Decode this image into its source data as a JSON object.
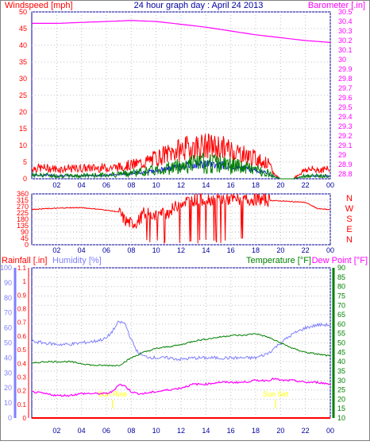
{
  "header": {
    "title": "24 hour graph day : April 24 2013",
    "left_label": "Windspeed [mph]",
    "right_label": "Barometer [.in]"
  },
  "colors": {
    "frame": "#0000a0",
    "grid": "#c0c0c0",
    "wind_avg": "#008000",
    "wind_gust": "#ff0000",
    "wind_lull": "#0000ff",
    "barometer": "#ff00ff",
    "direction": "#ff0000",
    "humidity": "#7f7fff",
    "temperature": "#008000",
    "dewpoint": "#ff00ff",
    "rainfall": "#ff0000",
    "sun": "#ffff00"
  },
  "chart_data": [
    {
      "type": "line",
      "name": "wind",
      "x_ticks": [
        "02",
        "04",
        "06",
        "08",
        "10",
        "12",
        "14",
        "16",
        "18",
        "20",
        "22",
        "00"
      ],
      "ylim": [
        0,
        50
      ],
      "y_ticks": [
        "0",
        "5",
        "10",
        "15",
        "20",
        "25",
        "30",
        "35",
        "40",
        "45",
        "50"
      ],
      "y2lim": [
        28.75,
        30.5
      ],
      "y2_ticks": [
        "28.8",
        "28.9",
        "29.0",
        "29.1",
        "29.2",
        "29.3",
        "29.4",
        "29.5",
        "29.6",
        "29.7",
        "29.8",
        "29.9",
        "30.0",
        "30.1",
        "30.2",
        "30.3",
        "30.4",
        "30.5"
      ],
      "y2_tick_labels": [
        "28.8",
        "28.9",
        "29",
        "29.1",
        "29.2",
        "29.3",
        "29.4",
        "29.5",
        "29.6",
        "29.7",
        "29.8",
        "29.9",
        "30",
        "30.1",
        "30.2",
        "30.3",
        "30.4",
        "30.5"
      ],
      "series": [
        {
          "role": "barometer",
          "hours": [
            0,
            2,
            4,
            6,
            8,
            10,
            12,
            14,
            16,
            18,
            20,
            22,
            24
          ],
          "values": [
            30.38,
            30.38,
            30.39,
            30.4,
            30.41,
            30.4,
            30.37,
            30.34,
            30.3,
            30.26,
            30.23,
            30.2,
            30.18
          ]
        },
        {
          "role": "gust",
          "hours": [
            0,
            1,
            2,
            3,
            4,
            5,
            6,
            7,
            8,
            9,
            10,
            11,
            12,
            13,
            14,
            15,
            16,
            17,
            18,
            19,
            19.5,
            20,
            21,
            22,
            23,
            24
          ],
          "values": [
            3.5,
            3.5,
            3.2,
            3.2,
            3.4,
            3.5,
            3.6,
            3.8,
            4.5,
            5.2,
            6.8,
            8.2,
            9.5,
            10.5,
            10.6,
            10.3,
            9.4,
            8.0,
            6.6,
            4.8,
            1.5,
            0,
            0,
            3.0,
            3.0,
            3.0
          ]
        },
        {
          "role": "average",
          "hours": [
            0,
            1,
            2,
            3,
            4,
            5,
            6,
            7,
            8,
            9,
            10,
            11,
            12,
            13,
            14,
            15,
            16,
            17,
            18,
            19,
            19.5,
            20,
            21,
            22,
            23,
            24
          ],
          "values": [
            1.2,
            1.3,
            1.0,
            1.0,
            1.1,
            1.2,
            1.3,
            1.6,
            2.0,
            2.4,
            2.9,
            3.6,
            4.4,
            5.0,
            5.2,
            5.0,
            4.4,
            3.8,
            3.0,
            2.0,
            0.8,
            0,
            0,
            1.0,
            1.0,
            1.0
          ]
        }
      ]
    },
    {
      "type": "line",
      "name": "direction",
      "x_ticks": [
        "02",
        "04",
        "06",
        "08",
        "10",
        "12",
        "14",
        "16",
        "18",
        "20",
        "22",
        "00"
      ],
      "ylim": [
        0,
        360
      ],
      "y_ticks": [
        "0",
        "45",
        "90",
        "135",
        "180",
        "225",
        "270",
        "315",
        "360"
      ],
      "compass": [
        "N",
        "W",
        "S",
        "E",
        "N"
      ],
      "series": [
        {
          "role": "direction",
          "hours": [
            0,
            1,
            2,
            3,
            4,
            5,
            6,
            7,
            7.5,
            8,
            8.5,
            9,
            10,
            11,
            12,
            13,
            14,
            15,
            16,
            17,
            18,
            19,
            20,
            21,
            22,
            23,
            24
          ],
          "values": [
            250,
            255,
            258,
            262,
            262,
            255,
            245,
            232,
            170,
            150,
            160,
            220,
            210,
            230,
            300,
            318,
            322,
            325,
            320,
            318,
            322,
            315,
            310,
            305,
            300,
            255,
            248
          ]
        }
      ]
    },
    {
      "type": "line",
      "name": "humidity-temperature",
      "x_ticks": [
        "02",
        "04",
        "06",
        "08",
        "10",
        "12",
        "14",
        "16",
        "18",
        "20",
        "22",
        "00"
      ],
      "sun_labels": [
        "Sun Rise",
        "Sun Set"
      ],
      "sun_hours": [
        6.5,
        19.6
      ],
      "hum_ylim": [
        0,
        100
      ],
      "hum_ticks": [
        "0",
        "10",
        "20",
        "30",
        "40",
        "50",
        "60",
        "70",
        "80",
        "90",
        "100"
      ],
      "rain_ylim": [
        0,
        1.1
      ],
      "rain_ticks": [
        "0",
        "0.1",
        "0.2",
        "0.3",
        "0.4",
        "0.5",
        "0.6",
        "0.7",
        "0.8",
        "0.9",
        "1",
        "1.1"
      ],
      "temp_ylim": [
        10,
        90
      ],
      "temp_ticks": [
        "10",
        "15",
        "20",
        "25",
        "30",
        "35",
        "40",
        "45",
        "50",
        "55",
        "60",
        "65",
        "70",
        "75",
        "80",
        "85",
        "90"
      ],
      "series": [
        {
          "role": "humidity",
          "hours": [
            0,
            1,
            2,
            3,
            4,
            5,
            6,
            6.5,
            7,
            7.5,
            8,
            8.5,
            9,
            10,
            11,
            12,
            13,
            14,
            15,
            16,
            17,
            18,
            19,
            20,
            21,
            22,
            23,
            24
          ],
          "values": [
            51,
            50,
            49,
            49,
            50,
            51,
            53,
            58,
            64,
            63,
            52,
            44,
            41,
            40,
            40,
            39,
            40,
            40,
            40,
            40,
            40,
            40,
            43,
            50,
            56,
            60,
            62,
            62
          ]
        },
        {
          "role": "temperature",
          "hours": [
            0,
            1,
            2,
            3,
            4,
            5,
            6,
            7,
            7.5,
            8,
            9,
            10,
            11,
            12,
            13,
            14,
            15,
            16,
            17,
            18,
            19,
            20,
            21,
            22,
            23,
            24
          ],
          "values": [
            39,
            40,
            40,
            40,
            39,
            38,
            38,
            38,
            40,
            42,
            45,
            47,
            48,
            49,
            51,
            52,
            53,
            54,
            54,
            55,
            53,
            50,
            47,
            45,
            44,
            43
          ]
        },
        {
          "role": "dewpoint",
          "hours": [
            0,
            1,
            2,
            3,
            4,
            5,
            6,
            6.5,
            7,
            7.5,
            8,
            8.5,
            9,
            10,
            11,
            12,
            13,
            14,
            15,
            16,
            17,
            18,
            19,
            19.5,
            20,
            21,
            22,
            23,
            24
          ],
          "values": [
            24,
            23,
            22,
            22,
            23,
            23,
            23,
            24,
            28,
            27,
            24,
            23,
            23,
            24,
            25,
            26,
            28,
            28,
            29,
            29,
            29,
            30,
            30,
            31,
            30,
            30,
            29,
            29,
            28
          ]
        },
        {
          "role": "rainfall",
          "hours": [
            0,
            24
          ],
          "values": [
            0,
            0
          ]
        }
      ],
      "labels": {
        "rainfall": "Rainfall [.in]",
        "humidity": "Humidity [%]",
        "temperature": "Temperature [°F]",
        "dewpoint": "Dew Point [°F]"
      }
    }
  ]
}
